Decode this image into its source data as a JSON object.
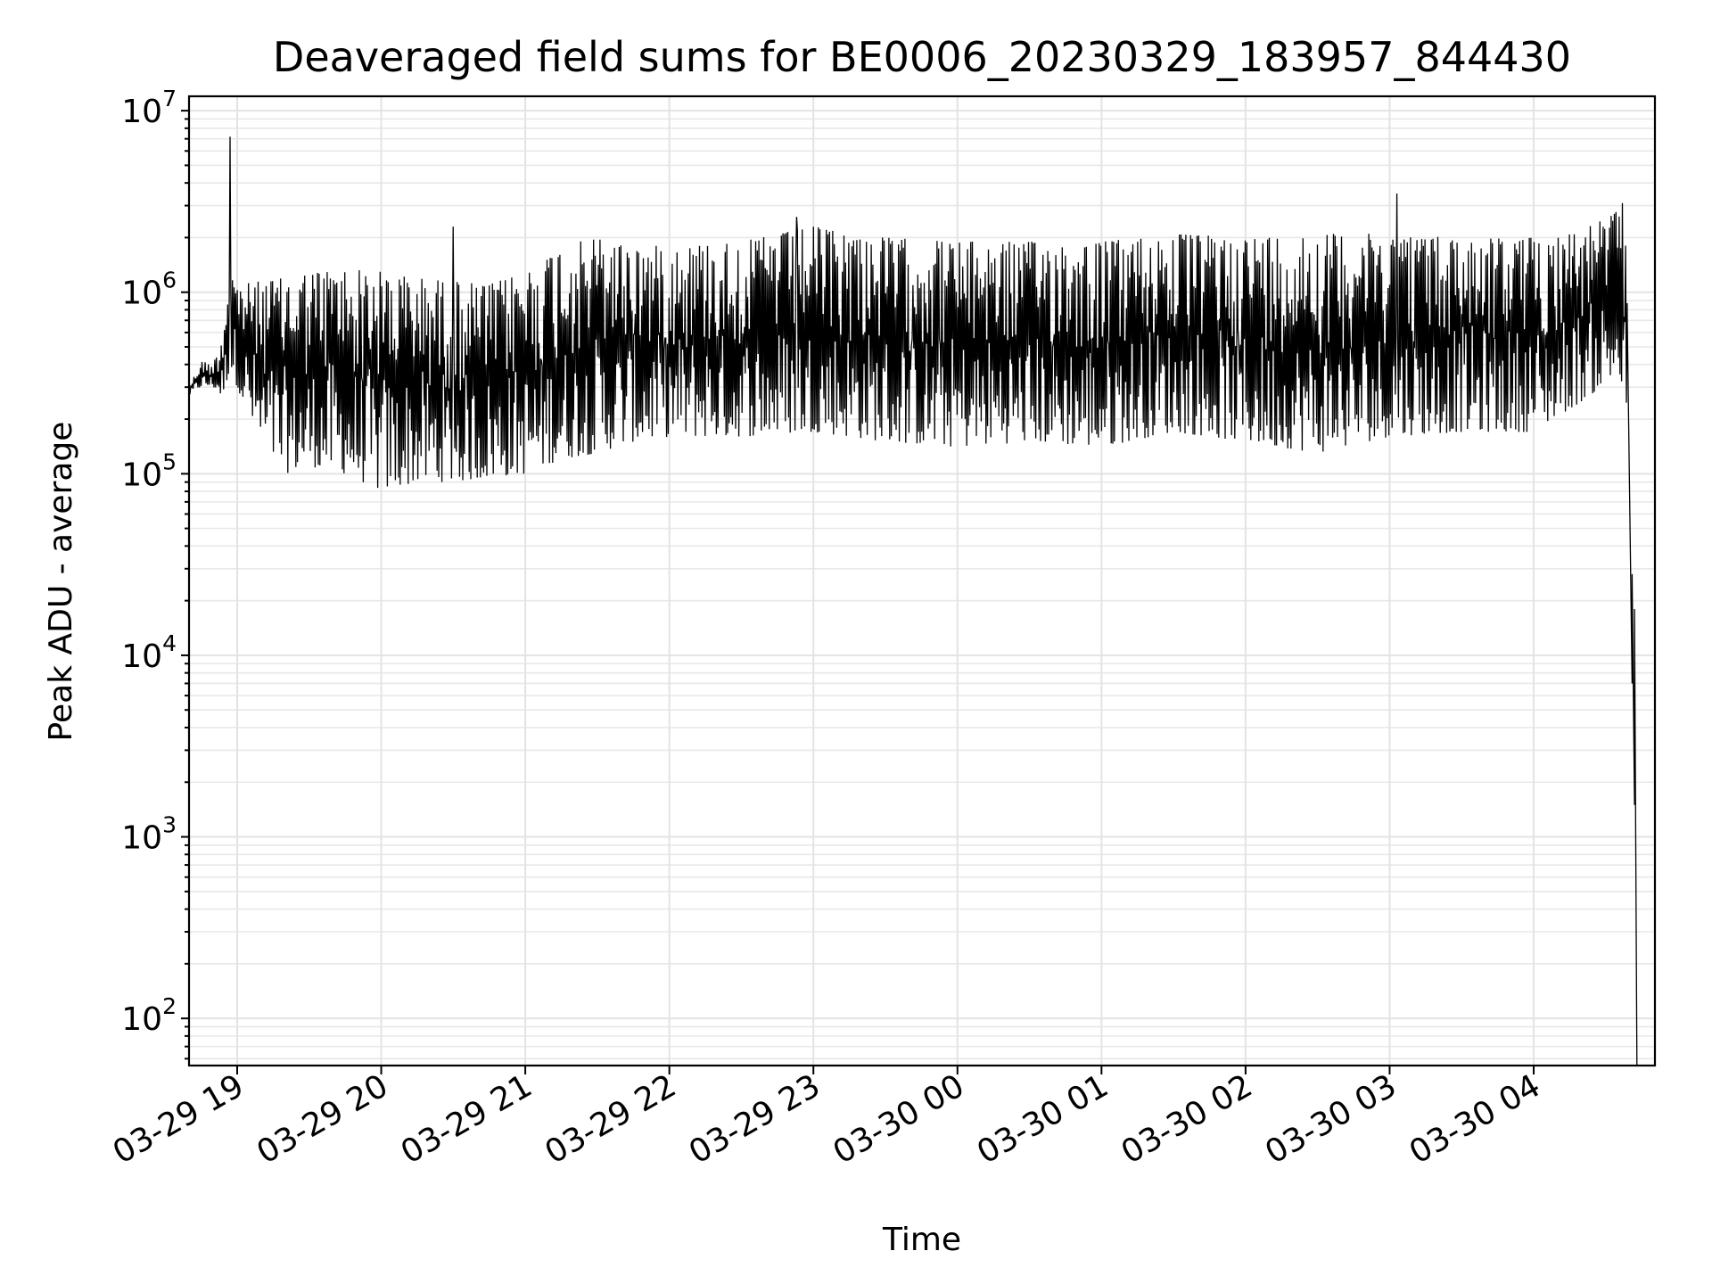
{
  "chart_data": {
    "type": "line",
    "title": "Deaveraged field sums for BE0006_20230329_183957_844430",
    "xlabel": "Time",
    "ylabel": "Peak ADU - average",
    "yscale": "log",
    "ylim": [
      55,
      12000000
    ],
    "xlim": [
      "2023-03-29 18:39:57",
      "2023-03-30 04:50:30"
    ],
    "grid": true,
    "x_ticks": [
      {
        "t": "2023-03-29 19:00",
        "label": "03-29 19"
      },
      {
        "t": "2023-03-29 20:00",
        "label": "03-29 20"
      },
      {
        "t": "2023-03-29 21:00",
        "label": "03-29 21"
      },
      {
        "t": "2023-03-29 22:00",
        "label": "03-29 22"
      },
      {
        "t": "2023-03-29 23:00",
        "label": "03-29 23"
      },
      {
        "t": "2023-03-30 00:00",
        "label": "03-30 00"
      },
      {
        "t": "2023-03-30 01:00",
        "label": "03-30 01"
      },
      {
        "t": "2023-03-30 02:00",
        "label": "03-30 02"
      },
      {
        "t": "2023-03-30 03:00",
        "label": "03-30 03"
      },
      {
        "t": "2023-03-30 04:00",
        "label": "03-30 04"
      }
    ],
    "y_ticks": [
      {
        "v": 100,
        "base": "10",
        "exp": "2"
      },
      {
        "v": 1000,
        "base": "10",
        "exp": "3"
      },
      {
        "v": 10000,
        "base": "10",
        "exp": "4"
      },
      {
        "v": 100000,
        "base": "10",
        "exp": "5"
      },
      {
        "v": 1000000,
        "base": "10",
        "exp": "6"
      },
      {
        "v": 10000000,
        "base": "10",
        "exp": "7"
      }
    ],
    "series": [
      {
        "color": "#000000",
        "envelope": [
          {
            "t": "2023-03-29 18:40",
            "low": 270000,
            "high": 300000
          },
          {
            "t": "2023-03-29 18:45",
            "low": 300000,
            "high": 420000
          },
          {
            "t": "2023-03-29 18:50",
            "low": 300000,
            "high": 400000
          },
          {
            "t": "2023-03-29 18:54",
            "low": 260000,
            "high": 600000
          },
          {
            "t": "2023-03-29 18:57",
            "low": 380000,
            "high": 1500000
          },
          {
            "t": "2023-03-29 19:00",
            "low": 300000,
            "high": 1100000
          },
          {
            "t": "2023-03-29 19:10",
            "low": 140000,
            "high": 1150000
          },
          {
            "t": "2023-03-29 19:20",
            "low": 100000,
            "high": 1200000
          },
          {
            "t": "2023-03-29 19:30",
            "low": 110000,
            "high": 1300000
          },
          {
            "t": "2023-03-29 19:45",
            "low": 100000,
            "high": 1350000
          },
          {
            "t": "2023-03-29 20:00",
            "low": 80000,
            "high": 1300000
          },
          {
            "t": "2023-03-29 20:15",
            "low": 90000,
            "high": 1200000
          },
          {
            "t": "2023-03-29 20:30",
            "low": 90000,
            "high": 1150000
          },
          {
            "t": "2023-03-29 20:45",
            "low": 95000,
            "high": 1100000
          },
          {
            "t": "2023-03-29 21:00",
            "low": 100000,
            "high": 1300000
          },
          {
            "t": "2023-03-29 21:15",
            "low": 120000,
            "high": 1800000
          },
          {
            "t": "2023-03-29 21:30",
            "low": 130000,
            "high": 2000000
          },
          {
            "t": "2023-03-29 21:45",
            "low": 150000,
            "high": 1800000
          },
          {
            "t": "2023-03-29 22:00",
            "low": 160000,
            "high": 1800000
          },
          {
            "t": "2023-03-29 22:30",
            "low": 160000,
            "high": 1900000
          },
          {
            "t": "2023-03-29 23:00",
            "low": 170000,
            "high": 2300000
          },
          {
            "t": "2023-03-29 23:30",
            "low": 150000,
            "high": 2000000
          },
          {
            "t": "2023-03-30 00:00",
            "low": 140000,
            "high": 1900000
          },
          {
            "t": "2023-03-30 00:30",
            "low": 150000,
            "high": 1900000
          },
          {
            "t": "2023-03-30 01:00",
            "low": 140000,
            "high": 1900000
          },
          {
            "t": "2023-03-30 01:30",
            "low": 170000,
            "high": 2100000
          },
          {
            "t": "2023-03-30 02:00",
            "low": 150000,
            "high": 2000000
          },
          {
            "t": "2023-03-30 02:30",
            "low": 130000,
            "high": 2100000
          },
          {
            "t": "2023-03-30 03:00",
            "low": 160000,
            "high": 2100000
          },
          {
            "t": "2023-03-30 03:30",
            "low": 170000,
            "high": 2000000
          },
          {
            "t": "2023-03-30 04:00",
            "low": 170000,
            "high": 2000000
          },
          {
            "t": "2023-03-30 04:20",
            "low": 250000,
            "high": 2200000
          },
          {
            "t": "2023-03-30 04:35",
            "low": 350000,
            "high": 2800000
          },
          {
            "t": "2023-03-30 04:39",
            "low": 200000,
            "high": 1800000
          }
        ],
        "spikes": [
          {
            "t": "2023-03-29 18:57",
            "value": 7200000
          },
          {
            "t": "2023-03-29 20:30",
            "value": 2300000
          },
          {
            "t": "2023-03-29 22:53",
            "value": 2600000
          },
          {
            "t": "2023-03-30 03:03",
            "value": 3500000
          },
          {
            "t": "2023-03-30 04:37",
            "value": 3100000
          }
        ],
        "tail": [
          {
            "t": "2023-03-30 04:39",
            "value": 700000
          },
          {
            "t": "2023-03-30 04:40",
            "value": 70000
          },
          {
            "t": "2023-03-30 04:41",
            "value": 7000
          },
          {
            "t": "2023-03-30 04:41",
            "value": 28000
          },
          {
            "t": "2023-03-30 04:42",
            "value": 1500
          },
          {
            "t": "2023-03-30 04:42",
            "value": 18000
          },
          {
            "t": "2023-03-30 04:43",
            "value": 55
          }
        ]
      }
    ]
  }
}
